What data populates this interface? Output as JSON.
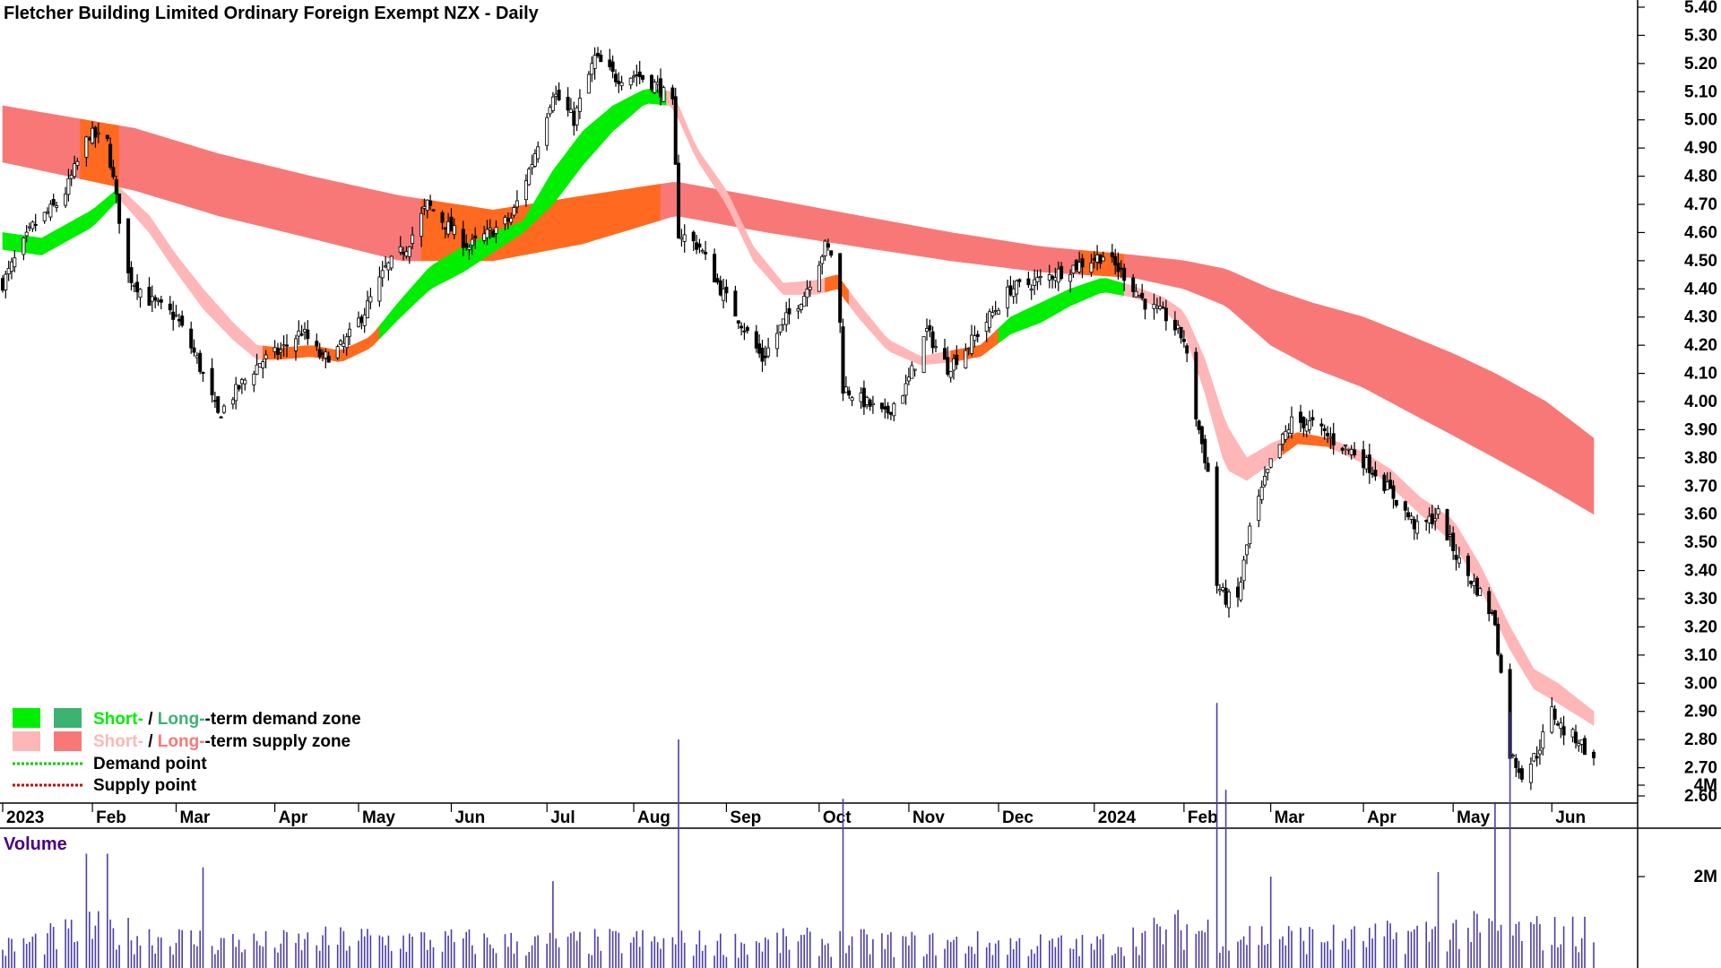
{
  "title": "Fletcher Building Limited Ordinary Foreign Exempt NZX - Daily",
  "volume_panel": {
    "title": "Volume",
    "title_color": "#4b0082",
    "ticks": [
      "4M",
      "2M"
    ],
    "tick_values": [
      4000000,
      2000000
    ],
    "bar_color": "#4b3ea8"
  },
  "colors": {
    "short_demand": "#00ee00",
    "long_demand": "#3cb371",
    "short_supply": "#ffb6b6",
    "long_supply": "#f87878",
    "transition": "#ff6a20",
    "demand_point": "#00cc00",
    "supply_point": "#cc0000"
  },
  "legend": {
    "row1": {
      "short": "Short-",
      "sep": " / ",
      "long": "Long-",
      "rest": "-term demand zone"
    },
    "row2": {
      "short": "Short-",
      "sep": " / ",
      "long": "Long-",
      "rest": "-term supply zone"
    },
    "row3": "Demand point",
    "row4": "Supply point"
  },
  "chart_data": {
    "type": "candlestick",
    "title": "Fletcher Building Limited Ordinary Foreign Exempt NZX - Daily",
    "y_axis": {
      "side": "right",
      "range": [
        2.55,
        5.42
      ],
      "ticks": [
        "5.40",
        "5.30",
        "5.20",
        "5.10",
        "5.00",
        "4.90",
        "4.80",
        "4.70",
        "4.60",
        "4.50",
        "4.40",
        "4.30",
        "4.20",
        "4.10",
        "4.00",
        "3.90",
        "3.80",
        "3.70",
        "3.60",
        "3.50",
        "3.40",
        "3.30",
        "3.20",
        "3.10",
        "3.00",
        "2.90",
        "2.80",
        "2.70",
        "2.60"
      ]
    },
    "x_axis": {
      "labels": [
        "2023",
        "Feb",
        "Mar",
        "Apr",
        "May",
        "Jun",
        "Jul",
        "Aug",
        "Sep",
        "Oct",
        "Nov",
        "Dec",
        "2024",
        "Feb",
        "Mar",
        "Apr",
        "May",
        "Jun"
      ]
    },
    "price_anchors": [
      [
        "2023-01-02",
        4.42
      ],
      [
        "2023-01-12",
        4.62
      ],
      [
        "2023-01-22",
        4.72
      ],
      [
        "2023-01-31",
        4.95
      ],
      [
        "2023-02-06",
        4.92
      ],
      [
        "2023-02-13",
        4.45
      ],
      [
        "2023-02-20",
        4.36
      ],
      [
        "2023-03-01",
        4.3
      ],
      [
        "2023-03-08",
        4.15
      ],
      [
        "2023-03-15",
        3.95
      ],
      [
        "2023-03-22",
        4.05
      ],
      [
        "2023-03-29",
        4.14
      ],
      [
        "2023-04-05",
        4.18
      ],
      [
        "2023-04-12",
        4.25
      ],
      [
        "2023-04-19",
        4.15
      ],
      [
        "2023-04-26",
        4.2
      ],
      [
        "2023-05-03",
        4.32
      ],
      [
        "2023-05-10",
        4.47
      ],
      [
        "2023-05-17",
        4.55
      ],
      [
        "2023-05-24",
        4.7
      ],
      [
        "2023-05-31",
        4.62
      ],
      [
        "2023-06-07",
        4.55
      ],
      [
        "2023-06-14",
        4.6
      ],
      [
        "2023-06-21",
        4.65
      ],
      [
        "2023-06-28",
        4.85
      ],
      [
        "2023-07-05",
        5.1
      ],
      [
        "2023-07-12",
        5.0
      ],
      [
        "2023-07-19",
        5.22
      ],
      [
        "2023-07-26",
        5.15
      ],
      [
        "2023-08-02",
        5.16
      ],
      [
        "2023-08-09",
        5.12
      ],
      [
        "2023-08-14",
        5.05
      ],
      [
        "2023-08-16",
        4.6
      ],
      [
        "2023-08-23",
        4.55
      ],
      [
        "2023-08-30",
        4.4
      ],
      [
        "2023-09-06",
        4.28
      ],
      [
        "2023-09-13",
        4.15
      ],
      [
        "2023-09-20",
        4.28
      ],
      [
        "2023-09-27",
        4.38
      ],
      [
        "2023-10-04",
        4.55
      ],
      [
        "2023-10-08",
        4.5
      ],
      [
        "2023-10-10",
        4.05
      ],
      [
        "2023-10-17",
        4.0
      ],
      [
        "2023-10-24",
        3.95
      ],
      [
        "2023-10-31",
        4.05
      ],
      [
        "2023-11-07",
        4.25
      ],
      [
        "2023-11-14",
        4.12
      ],
      [
        "2023-11-21",
        4.2
      ],
      [
        "2023-11-28",
        4.3
      ],
      [
        "2023-12-05",
        4.4
      ],
      [
        "2023-12-12",
        4.42
      ],
      [
        "2023-12-19",
        4.45
      ],
      [
        "2024-01-05",
        4.52
      ],
      [
        "2024-01-12",
        4.45
      ],
      [
        "2024-01-19",
        4.35
      ],
      [
        "2024-01-26",
        4.3
      ],
      [
        "2024-02-01",
        4.22
      ],
      [
        "2024-02-05",
        3.95
      ],
      [
        "2024-02-09",
        3.75
      ],
      [
        "2024-02-12",
        3.35
      ],
      [
        "2024-02-15",
        3.3
      ],
      [
        "2024-02-19",
        3.3
      ],
      [
        "2024-02-23",
        3.55
      ],
      [
        "2024-03-01",
        3.78
      ],
      [
        "2024-03-08",
        3.93
      ],
      [
        "2024-03-15",
        3.92
      ],
      [
        "2024-03-22",
        3.86
      ],
      [
        "2024-03-29",
        3.82
      ],
      [
        "2024-04-05",
        3.75
      ],
      [
        "2024-04-12",
        3.65
      ],
      [
        "2024-04-19",
        3.55
      ],
      [
        "2024-04-26",
        3.6
      ],
      [
        "2024-05-03",
        3.43
      ],
      [
        "2024-05-10",
        3.32
      ],
      [
        "2024-05-15",
        3.22
      ],
      [
        "2024-05-20",
        2.75
      ],
      [
        "2024-05-24",
        2.68
      ],
      [
        "2024-05-29",
        2.75
      ],
      [
        "2024-06-03",
        2.9
      ],
      [
        "2024-06-07",
        2.83
      ],
      [
        "2024-06-12",
        2.8
      ],
      [
        "2024-06-17",
        2.72
      ]
    ],
    "long_term_zone": {
      "dates": [
        "2023-01-02",
        "2023-02-15",
        "2023-03-15",
        "2023-04-15",
        "2023-05-15",
        "2023-06-15",
        "2023-07-15",
        "2023-08-15",
        "2023-09-15",
        "2023-10-15",
        "2023-11-15",
        "2023-12-15",
        "2024-01-15",
        "2024-02-01",
        "2024-02-15",
        "2024-03-01",
        "2024-03-15",
        "2024-04-01",
        "2024-04-15",
        "2024-05-01",
        "2024-05-15",
        "2024-06-01",
        "2024-06-17"
      ],
      "upper": [
        5.05,
        4.97,
        4.88,
        4.8,
        4.73,
        4.68,
        4.73,
        4.78,
        4.72,
        4.66,
        4.6,
        4.55,
        4.52,
        4.5,
        4.47,
        4.4,
        4.35,
        4.3,
        4.24,
        4.17,
        4.1,
        4.0,
        3.87
      ],
      "lower": [
        4.85,
        4.75,
        4.66,
        4.58,
        4.5,
        4.5,
        4.56,
        4.66,
        4.6,
        4.55,
        4.5,
        4.46,
        4.44,
        4.4,
        4.34,
        4.2,
        4.12,
        4.05,
        3.97,
        3.88,
        3.8,
        3.7,
        3.6
      ]
    },
    "short_term_zone": {
      "dates": [
        "2023-01-02",
        "2023-01-15",
        "2023-02-01",
        "2023-02-10",
        "2023-02-20",
        "2023-03-01",
        "2023-03-10",
        "2023-03-20",
        "2023-03-28",
        "2023-04-05",
        "2023-04-15",
        "2023-04-25",
        "2023-05-05",
        "2023-05-15",
        "2023-05-25",
        "2023-06-05",
        "2023-06-15",
        "2023-06-25",
        "2023-07-05",
        "2023-07-15",
        "2023-07-25",
        "2023-08-05",
        "2023-08-14",
        "2023-08-22",
        "2023-09-01",
        "2023-09-10",
        "2023-09-20",
        "2023-10-01",
        "2023-10-08",
        "2023-10-15",
        "2023-10-25",
        "2023-11-05",
        "2023-11-15",
        "2023-11-25",
        "2023-12-05",
        "2023-12-15",
        "2023-12-25",
        "2024-01-05",
        "2024-01-15",
        "2024-01-25",
        "2024-02-01",
        "2024-02-08",
        "2024-02-15",
        "2024-02-22",
        "2024-03-01",
        "2024-03-10",
        "2024-03-20",
        "2024-04-01",
        "2024-04-10",
        "2024-04-20",
        "2024-05-01",
        "2024-05-10",
        "2024-05-20",
        "2024-05-28",
        "2024-06-05",
        "2024-06-17"
      ],
      "upper": [
        4.6,
        4.58,
        4.68,
        4.76,
        4.66,
        4.52,
        4.4,
        4.28,
        4.2,
        4.19,
        4.2,
        4.18,
        4.23,
        4.36,
        4.48,
        4.55,
        4.6,
        4.64,
        4.82,
        4.96,
        5.05,
        5.11,
        5.1,
        4.9,
        4.75,
        4.55,
        4.42,
        4.43,
        4.45,
        4.35,
        4.22,
        4.16,
        4.18,
        4.2,
        4.3,
        4.35,
        4.4,
        4.44,
        4.41,
        4.37,
        4.32,
        4.15,
        3.92,
        3.8,
        3.85,
        3.89,
        3.87,
        3.82,
        3.76,
        3.66,
        3.58,
        3.42,
        3.2,
        3.05,
        3.0,
        2.9
      ],
      "lower": [
        4.54,
        4.52,
        4.62,
        4.72,
        4.6,
        4.46,
        4.33,
        4.22,
        4.15,
        4.15,
        4.16,
        4.14,
        4.19,
        4.3,
        4.4,
        4.46,
        4.53,
        4.6,
        4.7,
        4.84,
        4.96,
        5.06,
        5.05,
        4.86,
        4.7,
        4.5,
        4.38,
        4.38,
        4.4,
        4.3,
        4.18,
        4.13,
        4.14,
        4.16,
        4.24,
        4.28,
        4.34,
        4.39,
        4.37,
        4.33,
        4.25,
        4.03,
        3.76,
        3.72,
        3.78,
        3.85,
        3.84,
        3.78,
        3.7,
        3.6,
        3.5,
        3.34,
        3.12,
        2.98,
        2.93,
        2.85
      ]
    },
    "short_zone_color_segments": [
      [
        "2023-01-02",
        "2023-02-10",
        "demand"
      ],
      [
        "2023-02-10",
        "2023-03-30",
        "supply"
      ],
      [
        "2023-03-30",
        "2023-05-08",
        "transition"
      ],
      [
        "2023-05-08",
        "2023-08-12",
        "demand"
      ],
      [
        "2023-08-12",
        "2023-10-04",
        "supply"
      ],
      [
        "2023-10-04",
        "2023-10-12",
        "transition"
      ],
      [
        "2023-10-12",
        "2023-11-15",
        "supply"
      ],
      [
        "2023-11-15",
        "2023-12-01",
        "transition"
      ],
      [
        "2023-12-01",
        "2024-01-12",
        "demand"
      ],
      [
        "2024-01-12",
        "2024-03-05",
        "supply"
      ],
      [
        "2024-03-05",
        "2024-03-22",
        "transition"
      ],
      [
        "2024-03-22",
        "2024-06-17",
        "supply"
      ]
    ],
    "long_zone_color_segments": [
      [
        "2023-01-02",
        "2023-01-28",
        "supply"
      ],
      [
        "2023-01-28",
        "2023-02-10",
        "transition"
      ],
      [
        "2023-02-10",
        "2023-05-22",
        "supply"
      ],
      [
        "2023-05-22",
        "2023-08-10",
        "transition"
      ],
      [
        "2023-08-10",
        "2023-12-28",
        "supply"
      ],
      [
        "2023-12-28",
        "2024-01-12",
        "transition"
      ],
      [
        "2024-01-12",
        "2024-06-17",
        "supply"
      ]
    ],
    "volume_profile": [
      [
        "2023-01-02",
        0.45
      ],
      [
        "2023-02-01",
        0.85
      ],
      [
        "2023-03-01",
        0.65
      ],
      [
        "2023-04-01",
        0.55
      ],
      [
        "2023-05-01",
        0.65
      ],
      [
        "2023-06-01",
        0.6
      ],
      [
        "2023-07-01",
        0.55
      ],
      [
        "2023-08-01",
        0.6
      ],
      [
        "2023-09-01",
        0.55
      ],
      [
        "2023-10-01",
        0.6
      ],
      [
        "2023-11-01",
        0.55
      ],
      [
        "2023-12-01",
        0.55
      ],
      [
        "2024-01-01",
        0.5
      ],
      [
        "2024-02-01",
        0.9
      ],
      [
        "2024-03-01",
        0.7
      ],
      [
        "2024-04-01",
        0.65
      ],
      [
        "2024-05-01",
        0.85
      ],
      [
        "2024-06-01",
        0.8
      ]
    ],
    "volume_spikes": [
      [
        "2023-08-16",
        5000000
      ],
      [
        "2024-02-12",
        5800000
      ],
      [
        "2024-05-20",
        5600000
      ],
      [
        "2023-10-10",
        3700000
      ],
      [
        "2023-02-06",
        2500000
      ],
      [
        "2024-02-15",
        3900000
      ],
      [
        "2024-05-15",
        3600000
      ],
      [
        "2023-01-30",
        2500000
      ],
      [
        "2023-03-10",
        2200000
      ],
      [
        "2024-03-01",
        2000000
      ],
      [
        "2024-04-26",
        2100000
      ],
      [
        "2023-07-05",
        1900000
      ]
    ]
  }
}
